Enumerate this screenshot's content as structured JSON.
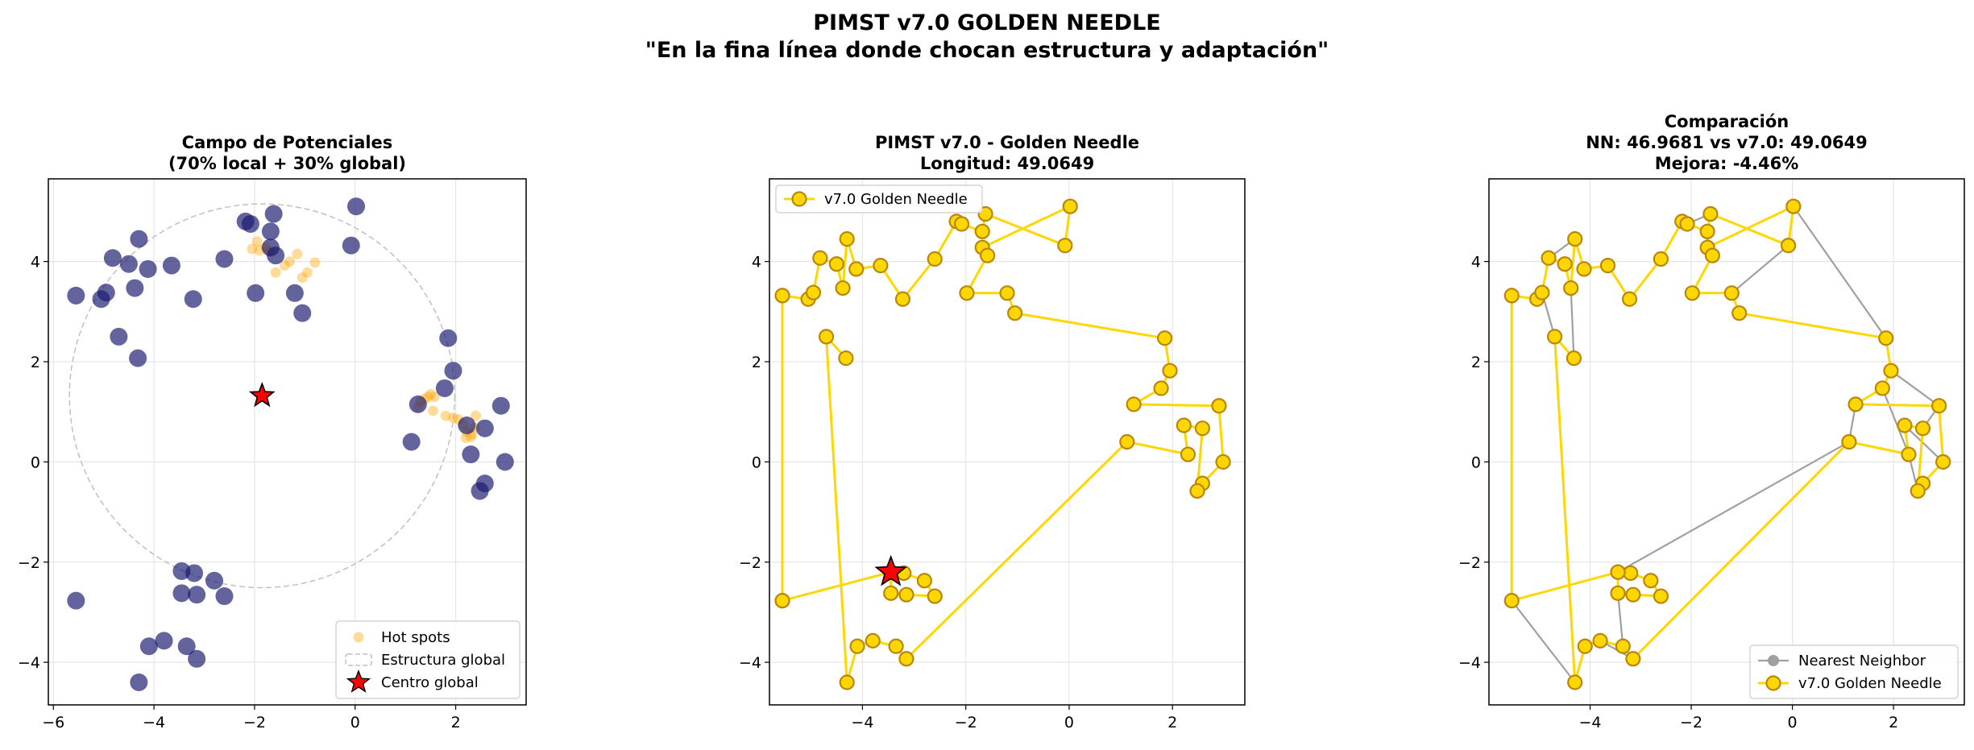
{
  "figure": {
    "title": "PIMST v7.0 GOLDEN NEEDLE",
    "subtitle": "\"En la fina línea donde chocan estructura y adaptación\""
  },
  "colors": {
    "cities": "#191970",
    "hotspot": "#ffa500",
    "structure": "#c0c0c0",
    "star": "#ff0000",
    "route": "#ffd700",
    "route_edge": "#b8860b",
    "nn": "#a0a0a0",
    "grid": "#e6e6e6"
  },
  "chart_data": [
    {
      "type": "scatter",
      "title": "Campo de Potenciales\n(70% local + 30% global)",
      "xlabel": "",
      "ylabel": "",
      "xlim": [
        -6.1,
        3.4
      ],
      "ylim": [
        -4.85,
        5.65
      ],
      "xticks": [
        -6,
        -4,
        -2,
        0,
        2
      ],
      "yticks": [
        -4,
        -2,
        0,
        2,
        4
      ],
      "grid": true,
      "legend_position": "bottom-right",
      "legend": [
        "Hot spots",
        "Estructura global",
        "Centro global"
      ],
      "cities": [
        [
          0.02,
          5.1
        ],
        [
          -0.08,
          4.32
        ],
        [
          -2.18,
          4.8
        ],
        [
          -2.08,
          4.75
        ],
        [
          -1.62,
          4.95
        ],
        [
          -1.68,
          4.6
        ],
        [
          -1.68,
          4.28
        ],
        [
          -1.58,
          4.12
        ],
        [
          -1.98,
          3.37
        ],
        [
          -1.2,
          3.37
        ],
        [
          -1.05,
          2.97
        ],
        [
          -2.6,
          4.05
        ],
        [
          -3.22,
          3.25
        ],
        [
          -3.65,
          3.92
        ],
        [
          -4.3,
          4.45
        ],
        [
          -4.38,
          3.47
        ],
        [
          -4.12,
          3.85
        ],
        [
          -4.5,
          3.95
        ],
        [
          -4.82,
          4.07
        ],
        [
          -4.95,
          3.38
        ],
        [
          -5.05,
          3.25
        ],
        [
          -5.55,
          3.32
        ],
        [
          -4.7,
          2.5
        ],
        [
          -4.32,
          2.07
        ],
        [
          1.85,
          2.47
        ],
        [
          1.78,
          1.47
        ],
        [
          1.95,
          1.82
        ],
        [
          1.25,
          1.15
        ],
        [
          1.12,
          0.4
        ],
        [
          2.9,
          1.12
        ],
        [
          2.22,
          0.73
        ],
        [
          2.58,
          0.67
        ],
        [
          2.3,
          0.15
        ],
        [
          2.98,
          0.0
        ],
        [
          2.58,
          -0.43
        ],
        [
          2.48,
          -0.58
        ],
        [
          -3.45,
          -2.18
        ],
        [
          -3.2,
          -2.22
        ],
        [
          -2.8,
          -2.37
        ],
        [
          -3.45,
          -2.62
        ],
        [
          -3.15,
          -2.65
        ],
        [
          -2.6,
          -2.68
        ],
        [
          -5.55,
          -2.77
        ],
        [
          -3.8,
          -3.57
        ],
        [
          -4.1,
          -3.68
        ],
        [
          -3.35,
          -3.68
        ],
        [
          -3.15,
          -3.93
        ],
        [
          -4.3,
          -4.4
        ]
      ],
      "hotspots": [
        [
          -1.78,
          4.28
        ],
        [
          -1.7,
          4.2
        ],
        [
          -1.9,
          4.22
        ],
        [
          -2.05,
          4.25
        ],
        [
          -1.95,
          4.4
        ],
        [
          -1.58,
          3.78
        ],
        [
          -1.4,
          3.92
        ],
        [
          -1.3,
          4.0
        ],
        [
          -1.15,
          4.15
        ],
        [
          -1.05,
          3.68
        ],
        [
          -0.95,
          3.78
        ],
        [
          -0.8,
          3.98
        ],
        [
          1.25,
          1.1
        ],
        [
          1.3,
          1.2
        ],
        [
          1.38,
          1.25
        ],
        [
          1.45,
          1.3
        ],
        [
          1.5,
          1.35
        ],
        [
          1.58,
          1.3
        ],
        [
          1.55,
          1.02
        ],
        [
          1.8,
          0.92
        ],
        [
          1.95,
          0.88
        ],
        [
          2.05,
          0.85
        ],
        [
          2.15,
          0.75
        ],
        [
          2.22,
          0.6
        ],
        [
          2.3,
          0.5
        ],
        [
          2.2,
          0.48
        ],
        [
          2.32,
          0.55
        ],
        [
          2.4,
          0.92
        ],
        [
          2.38,
          0.68
        ]
      ],
      "structure_circle": {
        "center": [
          -1.85,
          1.32
        ],
        "radius": 3.83
      },
      "global_center": [
        -1.85,
        1.32
      ]
    },
    {
      "type": "line",
      "title": "PIMST v7.0 - Golden Needle\nLongitud: 49.0649",
      "xlabel": "",
      "ylabel": "",
      "xlim": [
        -5.8,
        3.4
      ],
      "ylim": [
        -4.85,
        5.65
      ],
      "xticks": [
        -4,
        -2,
        0,
        2
      ],
      "yticks": [
        -4,
        -2,
        0,
        2,
        4
      ],
      "grid": true,
      "legend_position": "top-left",
      "series": [
        {
          "name": "v7.0 Golden Needle",
          "points": [
            [
              -3.45,
              -2.2
            ],
            [
              -3.45,
              -2.62
            ],
            [
              -3.15,
              -2.65
            ],
            [
              -2.6,
              -2.68
            ],
            [
              -2.8,
              -2.37
            ],
            [
              -3.2,
              -2.22
            ],
            [
              -3.45,
              -2.2
            ]
          ]
        },
        {
          "name": "",
          "points": [
            [
              -3.45,
              -2.2
            ],
            [
              -5.55,
              -2.77
            ],
            [
              -5.55,
              -2.77
            ],
            [
              -5.55,
              3.32
            ],
            [
              -5.05,
              3.25
            ],
            [
              -4.95,
              3.38
            ],
            [
              -4.82,
              4.07
            ],
            [
              -4.5,
              3.95
            ],
            [
              -4.38,
              3.47
            ],
            [
              -4.3,
              4.45
            ],
            [
              -4.12,
              3.85
            ],
            [
              -3.65,
              3.92
            ],
            [
              -3.22,
              3.25
            ],
            [
              -2.6,
              4.05
            ],
            [
              -2.18,
              4.8
            ],
            [
              -2.08,
              4.75
            ],
            [
              -1.68,
              4.6
            ],
            [
              -1.62,
              4.95
            ],
            [
              -0.08,
              4.32
            ],
            [
              0.02,
              5.1
            ],
            [
              -1.68,
              4.28
            ],
            [
              -1.58,
              4.12
            ],
            [
              -1.98,
              3.37
            ],
            [
              -1.2,
              3.37
            ],
            [
              -1.05,
              2.97
            ],
            [
              1.85,
              2.47
            ],
            [
              1.95,
              1.82
            ],
            [
              1.78,
              1.47
            ],
            [
              1.25,
              1.15
            ],
            [
              2.9,
              1.12
            ],
            [
              2.98,
              0.0
            ],
            [
              2.58,
              -0.43
            ],
            [
              2.48,
              -0.58
            ],
            [
              2.58,
              0.67
            ],
            [
              2.22,
              0.73
            ],
            [
              2.3,
              0.15
            ],
            [
              1.12,
              0.4
            ],
            [
              -3.15,
              -3.93
            ],
            [
              -3.35,
              -3.68
            ],
            [
              -3.8,
              -3.57
            ],
            [
              -4.1,
              -3.68
            ],
            [
              -4.3,
              -4.4
            ],
            [
              -4.7,
              2.5
            ],
            [
              -4.32,
              2.07
            ]
          ]
        }
      ],
      "start_point": [
        -3.45,
        -2.2
      ]
    },
    {
      "type": "line",
      "title": "Comparación\nNN: 46.9681 vs v7.0: 49.0649\nMejora: -4.46%",
      "xlabel": "",
      "ylabel": "",
      "xlim": [
        -6.0,
        3.4
      ],
      "ylim": [
        -4.85,
        5.65
      ],
      "xticks": [
        -4,
        -2,
        0,
        2
      ],
      "yticks": [
        -4,
        -2,
        0,
        2,
        4
      ],
      "grid": true,
      "legend_position": "bottom-right",
      "series": [
        {
          "name": "Nearest Neighbor",
          "points": [
            [
              -3.45,
              -2.2
            ],
            [
              -3.2,
              -2.22
            ],
            [
              -2.8,
              -2.37
            ],
            [
              -2.6,
              -2.68
            ],
            [
              -3.15,
              -2.65
            ],
            [
              -3.45,
              -2.62
            ],
            [
              -3.35,
              -3.68
            ],
            [
              -3.15,
              -3.93
            ],
            [
              -3.8,
              -3.57
            ],
            [
              -4.1,
              -3.68
            ],
            [
              -4.3,
              -4.4
            ],
            [
              -5.55,
              -2.77
            ],
            [
              -5.55,
              3.32
            ],
            [
              -5.05,
              3.25
            ],
            [
              -4.95,
              3.38
            ],
            [
              -4.7,
              2.5
            ],
            [
              -4.32,
              2.07
            ],
            [
              -4.38,
              3.47
            ],
            [
              -4.5,
              3.95
            ],
            [
              -4.82,
              4.07
            ],
            [
              -4.3,
              4.45
            ],
            [
              -4.12,
              3.85
            ],
            [
              -3.65,
              3.92
            ],
            [
              -3.22,
              3.25
            ],
            [
              -2.6,
              4.05
            ],
            [
              -2.18,
              4.8
            ],
            [
              -2.08,
              4.75
            ],
            [
              -1.62,
              4.95
            ],
            [
              -1.68,
              4.6
            ],
            [
              -1.68,
              4.28
            ],
            [
              -1.58,
              4.12
            ],
            [
              -1.98,
              3.37
            ],
            [
              -1.2,
              3.37
            ],
            [
              -0.08,
              4.32
            ],
            [
              0.02,
              5.1
            ],
            [
              1.85,
              2.47
            ],
            [
              1.95,
              1.82
            ],
            [
              2.9,
              1.12
            ],
            [
              2.58,
              0.67
            ],
            [
              2.22,
              0.73
            ],
            [
              2.98,
              0.0
            ],
            [
              2.58,
              -0.43
            ],
            [
              2.48,
              -0.58
            ],
            [
              2.3,
              0.15
            ],
            [
              1.78,
              1.47
            ],
            [
              1.25,
              1.15
            ],
            [
              1.12,
              0.4
            ],
            [
              -3.45,
              -2.2
            ]
          ]
        },
        {
          "name": "v7.0 Golden Needle",
          "points": [
            [
              -3.45,
              -2.2
            ],
            [
              -3.45,
              -2.62
            ],
            [
              -3.15,
              -2.65
            ],
            [
              -2.6,
              -2.68
            ],
            [
              -2.8,
              -2.37
            ],
            [
              -3.2,
              -2.22
            ],
            [
              -3.45,
              -2.2
            ],
            [
              -5.55,
              -2.77
            ],
            [
              -5.55,
              3.32
            ],
            [
              -5.05,
              3.25
            ],
            [
              -4.95,
              3.38
            ],
            [
              -4.82,
              4.07
            ],
            [
              -4.5,
              3.95
            ],
            [
              -4.38,
              3.47
            ],
            [
              -4.3,
              4.45
            ],
            [
              -4.12,
              3.85
            ],
            [
              -3.65,
              3.92
            ],
            [
              -3.22,
              3.25
            ],
            [
              -2.6,
              4.05
            ],
            [
              -2.18,
              4.8
            ],
            [
              -2.08,
              4.75
            ],
            [
              -1.68,
              4.6
            ],
            [
              -1.62,
              4.95
            ],
            [
              -0.08,
              4.32
            ],
            [
              0.02,
              5.1
            ],
            [
              -1.68,
              4.28
            ],
            [
              -1.58,
              4.12
            ],
            [
              -1.98,
              3.37
            ],
            [
              -1.2,
              3.37
            ],
            [
              -1.05,
              2.97
            ],
            [
              1.85,
              2.47
            ],
            [
              1.95,
              1.82
            ],
            [
              1.78,
              1.47
            ],
            [
              1.25,
              1.15
            ],
            [
              2.9,
              1.12
            ],
            [
              2.98,
              0.0
            ],
            [
              2.58,
              -0.43
            ],
            [
              2.48,
              -0.58
            ],
            [
              2.58,
              0.67
            ],
            [
              2.22,
              0.73
            ],
            [
              2.3,
              0.15
            ],
            [
              1.12,
              0.4
            ],
            [
              -3.15,
              -3.93
            ],
            [
              -3.35,
              -3.68
            ],
            [
              -3.8,
              -3.57
            ],
            [
              -4.1,
              -3.68
            ],
            [
              -4.3,
              -4.4
            ],
            [
              -4.7,
              2.5
            ],
            [
              -4.32,
              2.07
            ]
          ]
        }
      ]
    }
  ]
}
